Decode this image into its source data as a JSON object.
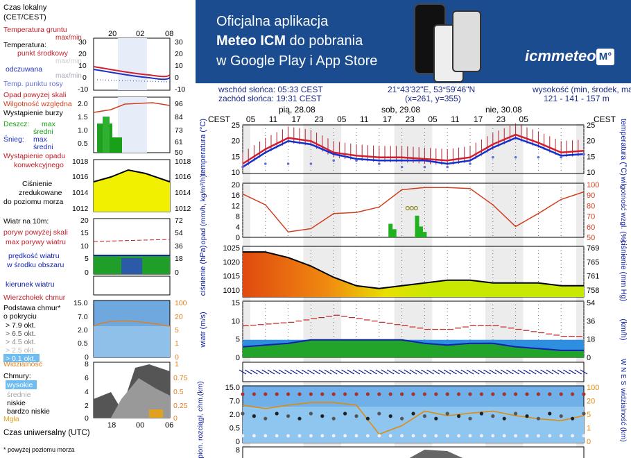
{
  "banner": {
    "line1": "Oficjalna aplikacja",
    "line2_bold": "Meteo ICM",
    "line2_rest": " do pobrania",
    "line3": "w Google Play i App Store",
    "logo": "icmmeteo",
    "logo_badge": "M°"
  },
  "info": {
    "sunrise": "wschód słońca: 05:33 CEST",
    "sunset": "zachód słońca: 19:31 CEST",
    "coords": "21°43'32\"E, 53°59'46\"N",
    "grid": "(x=261,  y=355)",
    "height_label": "wysokość (min, środek, max)",
    "height_values": "121 - 141 - 157 m"
  },
  "legend": {
    "time_title": "Czas lokalny",
    "time_sub": "(CET/CEST)",
    "time_ticks": [
      "20",
      "02",
      "08"
    ],
    "temp_soil": "Temperatura gruntu",
    "temp_soil_sub": "max/min",
    "temperature": "Temperatura:",
    "mid_point": "punkt środkowy",
    "minmax": "max/min",
    "feels": "odczuwana",
    "feels_minmax": "max/min",
    "dew": "Temp. punktu rosy",
    "temp_left_ticks": [
      "30",
      "20",
      "10",
      "0",
      "-10"
    ],
    "temp_right_ticks": [
      "30",
      "20",
      "10",
      "0",
      "-10"
    ],
    "precip_over": "Opad powyżej skali",
    "humidity": "Wilgotność względna",
    "storm": "Wystąpienie burzy",
    "rain": "Deszcz:",
    "rain_max": "max",
    "rain_avg": "średni",
    "snow": "Śnieg:",
    "snow_max": "max",
    "snow_avg": "średni",
    "conv": "Wystąpienie opadu",
    "conv2": "konwekcyjnego",
    "precip_left_ticks": [
      "2.0",
      "1.5",
      "1.0",
      "0.5"
    ],
    "precip_right_ticks": [
      "96",
      "84",
      "73",
      "61",
      "50"
    ],
    "pressure1": "Ciśnienie",
    "pressure2": "zredukowane",
    "pressure3": "do poziomu morza",
    "pres_left_ticks": [
      "1018",
      "1016",
      "1014",
      "1012"
    ],
    "pres_right_ticks": [
      "1018",
      "1016",
      "1014",
      "1012"
    ],
    "wind_title": "Wiatr na 10m:",
    "gust_over": "poryw powyżej skali",
    "gust_max": "max porywy wiatru",
    "wind_speed": "prędkość wiatru",
    "wind_area": "w środku obszaru",
    "wind_left_ticks": [
      "20",
      "15",
      "10",
      "5",
      "0"
    ],
    "wind_right_ticks": [
      "72",
      "54",
      "36",
      "18",
      "0"
    ],
    "wind_dir": "kierunek wiatru",
    "cloud_top": "Wierzchołek chmur",
    "cloud_base": "Podstawa chmur*",
    "cloud_cover": "o pokryciu",
    "okt79": "> 7.9 okt.",
    "okt65": "> 6.5 okt.",
    "okt45": "> 4.5 okt.",
    "okt25": "> 2.5 okt.",
    "okt01": "> 0.1 okt.",
    "cloud_left_ticks": [
      "15.0",
      "7.0",
      "2.0",
      "0.5",
      "0"
    ],
    "cloud_right_ticks": [
      "100",
      "20",
      "5",
      "1",
      "0"
    ],
    "visibility": "Widzialność",
    "clouds": "Chmury:",
    "high": "wysokie",
    "mid": "średnie",
    "low": "niskie",
    "vlow": "bardzo niskie",
    "fog": "Mgła",
    "cl_left_ticks": [
      "8",
      "6",
      "4",
      "2",
      "0"
    ],
    "cl_right_ticks": [
      "1",
      "0.75",
      "0.5",
      "0.25",
      "0"
    ],
    "utc_title": "Czas uniwersalny (UTC)",
    "utc_ticks": [
      "18",
      "00",
      "06"
    ],
    "footnote": "* powyżej poziomu morza"
  },
  "chart_data": {
    "type": "meteogram",
    "timezone_label": "CEST",
    "days": [
      "pią, 28.08",
      "sob, 29.08",
      "nie, 30.08"
    ],
    "hour_ticks": [
      "05",
      "11",
      "17",
      "23",
      "05",
      "11",
      "17",
      "23",
      "05",
      "11",
      "17",
      "23",
      "05"
    ],
    "panels": {
      "temperature": {
        "ylabel": "temperatura (°C)",
        "ylim": [
          10,
          25
        ],
        "ticks": [
          "25",
          "20",
          "15",
          "10"
        ],
        "x_hours": [
          0,
          6,
          12,
          18,
          24,
          30,
          36,
          42,
          48,
          54,
          60,
          66,
          72,
          78,
          84,
          90
        ],
        "mid": [
          13,
          17.5,
          21,
          20,
          16.5,
          15.5,
          15,
          15,
          14.5,
          14,
          15,
          19,
          22,
          19.5,
          16.5,
          17
        ],
        "feels": [
          12,
          16.5,
          20,
          19,
          16,
          14.5,
          14,
          14,
          14,
          13,
          14,
          18,
          21,
          18.5,
          15.5,
          16
        ],
        "dew": [
          12,
          13,
          13,
          13,
          14,
          14,
          13,
          12,
          12,
          12,
          13,
          15,
          15,
          15,
          15,
          16
        ]
      },
      "precipitation": {
        "ylabel_left": "opad (mm/h, kg/m²/h)",
        "ylabel_right": "wilgotność wzgl. (%)",
        "left_ticks": [
          "20",
          "16",
          "12",
          "8",
          "4",
          "0"
        ],
        "right_ticks": [
          "100",
          "90",
          "80",
          "70",
          "60",
          "50"
        ],
        "humidity_x": [
          0,
          6,
          12,
          18,
          24,
          30,
          36,
          42,
          48,
          54,
          60,
          66,
          72,
          78,
          84,
          90
        ],
        "humidity": [
          90,
          80,
          55,
          58,
          72,
          73,
          78,
          94,
          96,
          96,
          95,
          80,
          60,
          72,
          85,
          92
        ],
        "rain_x": [
          39,
          40,
          46,
          47,
          48
        ],
        "rain": [
          2.5,
          1.5,
          4,
          2,
          1
        ]
      },
      "pressure": {
        "ylabel_left": "ciśnienie (hPa)",
        "ylabel_right": "ciśnienie (mm Hg)",
        "left_ticks": [
          "1025",
          "1020",
          "1015",
          "1010"
        ],
        "right_ticks": [
          "769",
          "765",
          "761",
          "758"
        ],
        "x": [
          0,
          6,
          12,
          18,
          24,
          30,
          36,
          42,
          48,
          54,
          60,
          66,
          72,
          78,
          84,
          90
        ],
        "values": [
          1024,
          1024,
          1022,
          1019,
          1015,
          1012,
          1011,
          1012,
          1013,
          1014,
          1014,
          1013,
          1013,
          1013,
          1012,
          1012
        ]
      },
      "wind": {
        "ylabel_left": "wiatr (m/s)",
        "ylabel_right": "(km/h)",
        "left_ticks": [
          "15",
          "10",
          "5",
          "0"
        ],
        "right_ticks": [
          "54",
          "36",
          "18",
          "0"
        ],
        "x": [
          0,
          6,
          12,
          18,
          24,
          30,
          36,
          42,
          48,
          54,
          60,
          66,
          72,
          78,
          84,
          90
        ],
        "speed": [
          3,
          3.5,
          4,
          5,
          5,
          5,
          5,
          5,
          4,
          3.5,
          4,
          4,
          3,
          2.5,
          2,
          2
        ],
        "gust": [
          9,
          9.5,
          10,
          11,
          12,
          11,
          10,
          9,
          8,
          8,
          9,
          9,
          8,
          7,
          6,
          6
        ]
      },
      "wind_direction": {
        "label": "W N E S"
      },
      "cloud_base": {
        "ylabel_left": "pion. rozciągł. chm.(km)",
        "ylabel_right": "widzialność (km)",
        "left_ticks": [
          "15.0",
          "7.0",
          "2.0",
          "0.5",
          "0"
        ],
        "right_ticks": [
          "100",
          "20",
          "5",
          "1",
          "0"
        ],
        "visibility_x": [
          0,
          6,
          12,
          18,
          24,
          30,
          36,
          42,
          48,
          54,
          60,
          66,
          72,
          78,
          84,
          90
        ],
        "visibility": [
          20,
          15,
          20,
          25,
          25,
          20,
          1,
          3,
          12,
          8,
          10,
          12,
          8,
          6,
          5,
          8
        ]
      },
      "clouds": {
        "left_ticks": [
          "8"
        ]
      }
    }
  }
}
